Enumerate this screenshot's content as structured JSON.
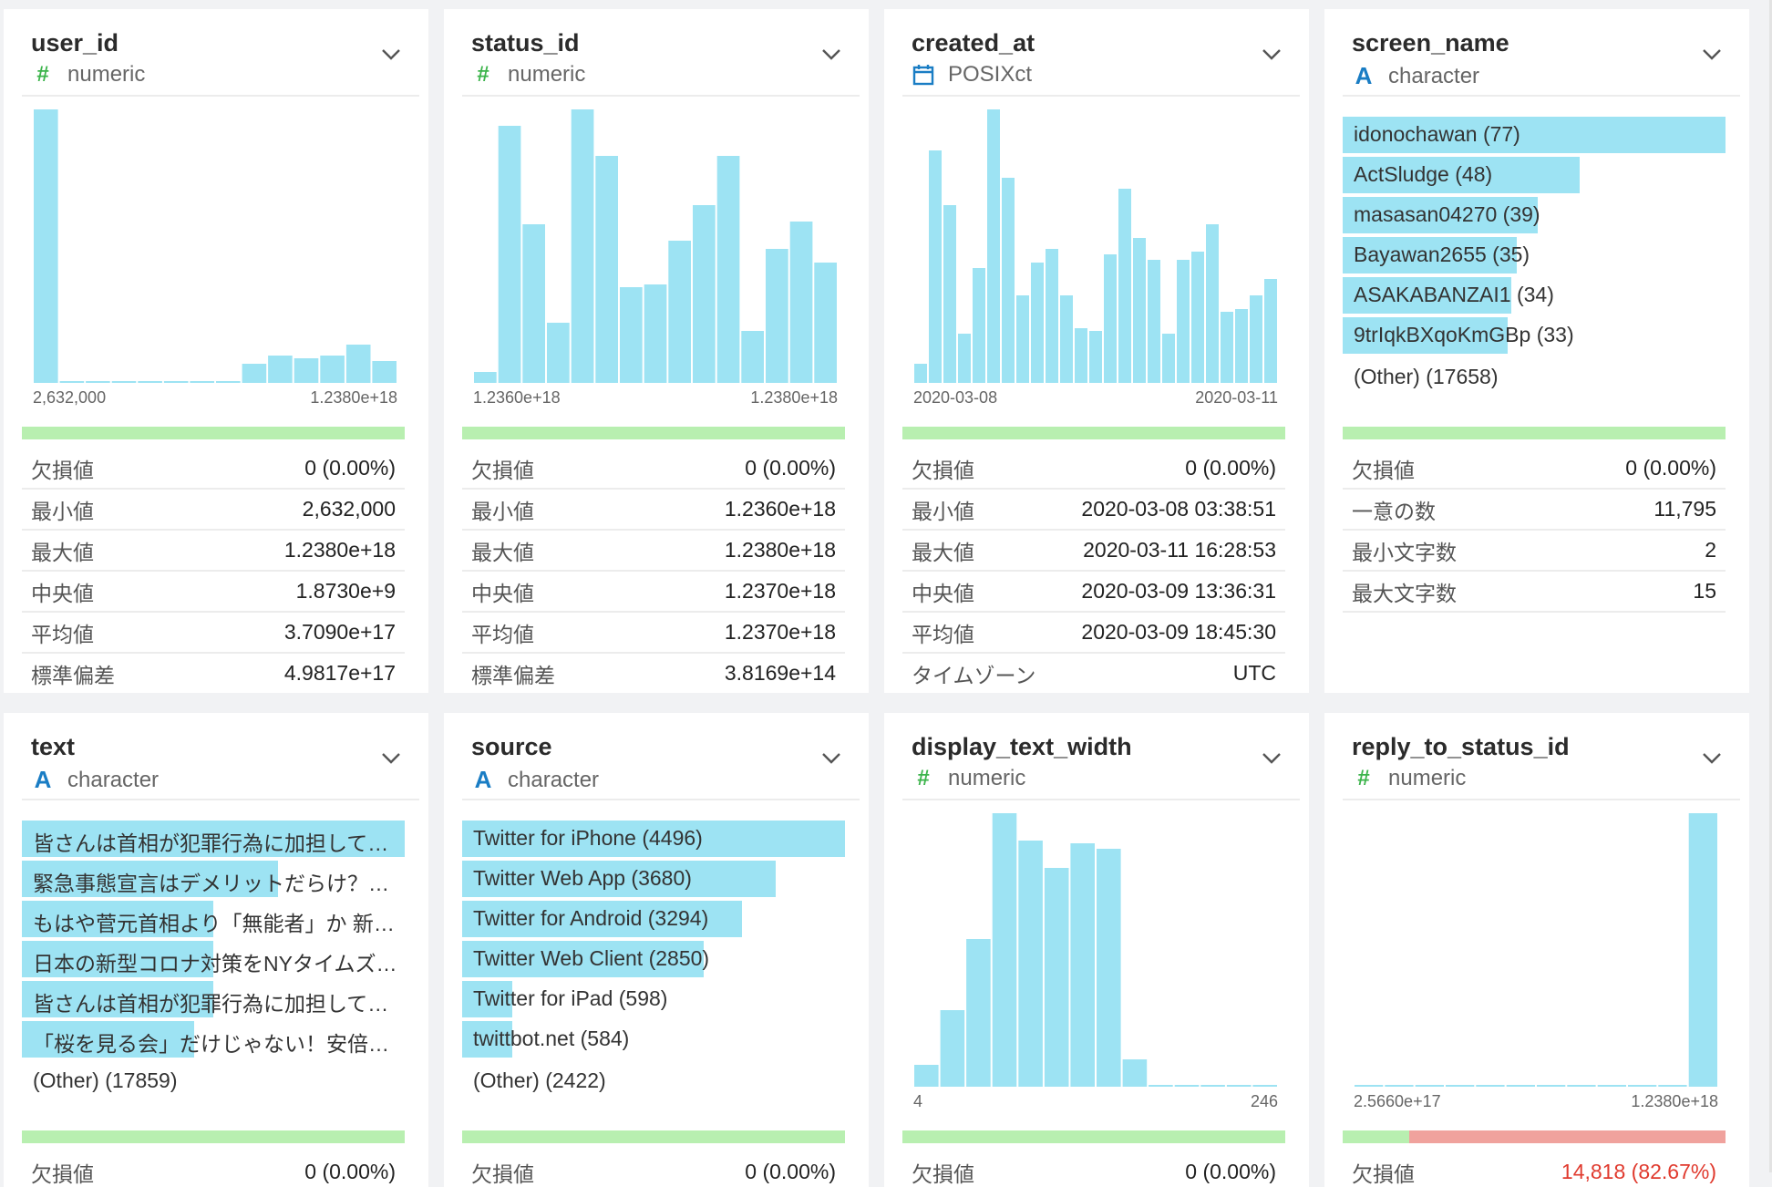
{
  "colors": {
    "bar": "#9de3f3",
    "present": "#b8efb0",
    "missing": "#f0a29d",
    "numeric_icon": "#3cb44b",
    "character_icon": "#1a7dc4",
    "date_icon": "#1a7dc4"
  },
  "cards": [
    {
      "name": "user_id",
      "type": "numeric",
      "icon": "hash-icon",
      "histogram": {
        "counts": [
          100,
          0.5,
          0.5,
          0.5,
          0.5,
          0.5,
          0.5,
          0.5,
          7,
          10,
          9,
          10,
          14,
          8
        ],
        "min_label": "2,632,000",
        "max_label": "1.2380e+18"
      },
      "missing_fraction": 0,
      "stats": [
        [
          "欠損値",
          "0 (0.00%)"
        ],
        [
          "最小値",
          "2,632,000"
        ],
        [
          "最大値",
          "1.2380e+18"
        ],
        [
          "中央値",
          "1.8730e+9"
        ],
        [
          "平均値",
          "3.7090e+17"
        ],
        [
          "標準偏差",
          "4.9817e+17"
        ]
      ]
    },
    {
      "name": "status_id",
      "type": "numeric",
      "icon": "hash-icon",
      "histogram": {
        "counts": [
          4,
          94,
          58,
          22,
          100,
          83,
          35,
          36,
          52,
          65,
          83,
          19,
          49,
          59,
          44
        ],
        "min_label": "1.2360e+18",
        "max_label": "1.2380e+18"
      },
      "missing_fraction": 0,
      "stats": [
        [
          "欠損値",
          "0 (0.00%)"
        ],
        [
          "最小値",
          "1.2360e+18"
        ],
        [
          "最大値",
          "1.2380e+18"
        ],
        [
          "中央値",
          "1.2370e+18"
        ],
        [
          "平均値",
          "1.2370e+18"
        ],
        [
          "標準偏差",
          "3.8169e+14"
        ]
      ]
    },
    {
      "name": "created_at",
      "type": "POSIXct",
      "icon": "calendar-icon",
      "histogram": {
        "counts": [
          7,
          85,
          65,
          18,
          42,
          100,
          75,
          32,
          44,
          49,
          32,
          20,
          19,
          47,
          71,
          53,
          45,
          18,
          45,
          48,
          58,
          26,
          27,
          32,
          38
        ],
        "min_label": "2020-03-08",
        "max_label": "2020-03-11"
      },
      "missing_fraction": 0,
      "stats": [
        [
          "欠損値",
          "0 (0.00%)"
        ],
        [
          "最小値",
          "2020-03-08 03:38:51"
        ],
        [
          "最大値",
          "2020-03-11 16:28:53"
        ],
        [
          "中央値",
          "2020-03-09 13:36:31"
        ],
        [
          "平均値",
          "2020-03-09 18:45:30"
        ],
        [
          "タイムゾーン",
          "UTC"
        ]
      ]
    },
    {
      "name": "screen_name",
      "type": "character",
      "icon": "letter-a-icon",
      "top_values": [
        {
          "label": "idonochawan (77)",
          "fraction": 1.0
        },
        {
          "label": "ActSludge (48)",
          "fraction": 0.62
        },
        {
          "label": "masasan04270 (39)",
          "fraction": 0.51
        },
        {
          "label": "Bayawan2655 (35)",
          "fraction": 0.455
        },
        {
          "label": "ASAKABANZAI1 (34)",
          "fraction": 0.44
        },
        {
          "label": "9trIqkBXqoKmGBp (33)",
          "fraction": 0.43
        },
        {
          "label": "(Other) (17658)",
          "fraction": 0
        }
      ],
      "missing_fraction": 0,
      "stats": [
        [
          "欠損値",
          "0 (0.00%)"
        ],
        [
          "一意の数",
          "11,795"
        ],
        [
          "最小文字数",
          "2"
        ],
        [
          "最大文字数",
          "15"
        ]
      ]
    },
    {
      "name": "text",
      "type": "character",
      "icon": "letter-a-icon",
      "top_values": [
        {
          "label": "皆さんは首相が犯罪行為に加担して…",
          "fraction": 1.0
        },
        {
          "label": "緊急事態宣言はデメリットだらけ？…",
          "fraction": 0.67
        },
        {
          "label": "もはや菅元首相より「無能者」か 新…",
          "fraction": 0.5
        },
        {
          "label": "日本の新型コロナ対策をNYタイムズ…",
          "fraction": 0.5
        },
        {
          "label": "皆さんは首相が犯罪行為に加担して…",
          "fraction": 0.5
        },
        {
          "label": "「桜を見る会」だけじゃない！安倍…",
          "fraction": 0.45
        },
        {
          "label": "(Other) (17859)",
          "fraction": 0
        }
      ],
      "missing_fraction": 0,
      "stats": [
        [
          "欠損値",
          "0 (0.00%)"
        ]
      ]
    },
    {
      "name": "source",
      "type": "character",
      "icon": "letter-a-icon",
      "top_values": [
        {
          "label": "Twitter for iPhone (4496)",
          "fraction": 1.0
        },
        {
          "label": "Twitter Web App (3680)",
          "fraction": 0.82
        },
        {
          "label": "Twitter for Android (3294)",
          "fraction": 0.73
        },
        {
          "label": "Twitter Web Client (2850)",
          "fraction": 0.63
        },
        {
          "label": "Twitter for iPad (598)",
          "fraction": 0.13
        },
        {
          "label": "twittbot.net (584)",
          "fraction": 0.13
        },
        {
          "label": "(Other) (2422)",
          "fraction": 0
        }
      ],
      "missing_fraction": 0,
      "stats": [
        [
          "欠損値",
          "0 (0.00%)"
        ]
      ]
    },
    {
      "name": "display_text_width",
      "type": "numeric",
      "icon": "hash-icon",
      "histogram": {
        "counts": [
          8,
          28,
          54,
          100,
          90,
          80,
          89,
          87,
          10,
          0.5,
          0.5,
          0.5,
          0.5,
          0.5
        ],
        "min_label": "4",
        "max_label": "246"
      },
      "missing_fraction": 0,
      "stats": [
        [
          "欠損値",
          "0 (0.00%)"
        ]
      ]
    },
    {
      "name": "reply_to_status_id",
      "type": "numeric",
      "icon": "hash-icon",
      "histogram": {
        "counts": [
          0.5,
          0.5,
          0.5,
          0.5,
          0.5,
          0.5,
          0.5,
          0.5,
          0.5,
          0.5,
          0.5,
          100
        ],
        "min_label": "2.5660e+17",
        "max_label": "1.2380e+18"
      },
      "missing_fraction": 0.8267,
      "stats": [
        [
          "欠損値",
          "14,818 (82.67%)"
        ]
      ]
    }
  ]
}
